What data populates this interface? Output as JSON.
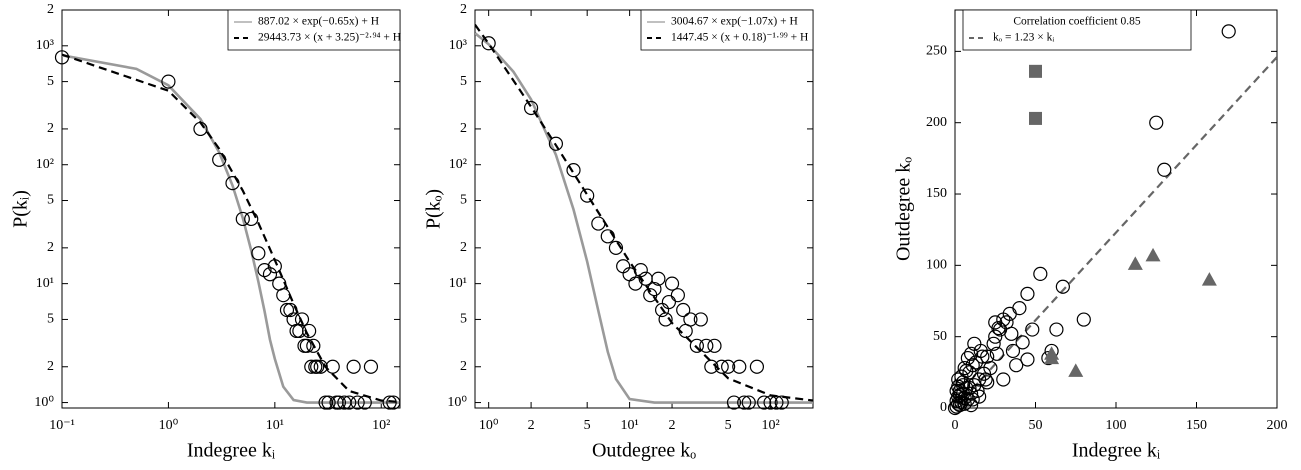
{
  "chart_data": [
    {
      "type": "scatter",
      "xlabel": "Indegree kᵢ",
      "ylabel": "P(kᵢ)",
      "xscale": "log",
      "yscale": "log",
      "xlim": [
        0.1,
        150
      ],
      "ylim": [
        0.9,
        2000
      ],
      "xticks": [
        {
          "value": 0.1,
          "label": "10⁻¹"
        },
        {
          "value": 1,
          "label": "10⁰"
        },
        {
          "value": 10,
          "label": "10¹"
        },
        {
          "value": 100,
          "label": "10²"
        }
      ],
      "yticks": [
        {
          "value": 1,
          "label": "10⁰"
        },
        2,
        5,
        {
          "value": 10,
          "label": "10¹"
        },
        {
          "value": 20,
          "label": "2"
        },
        {
          "value": 50,
          "label": "5"
        },
        {
          "value": 100,
          "label": "10²"
        },
        {
          "value": 200,
          "label": "2"
        },
        {
          "value": 500,
          "label": "5"
        },
        {
          "value": 1000,
          "label": "10³"
        },
        {
          "value": 2000,
          "label": "2"
        }
      ],
      "legend": "upper right",
      "series": [
        {
          "name": "887.02 × exp(−0.65x) + H",
          "color": "#9a9a9a",
          "marker": "none",
          "linestyle": "solid",
          "x": [
            0.1,
            0.5,
            1,
            2,
            3,
            4,
            5,
            6,
            7,
            8,
            9,
            10,
            12,
            15,
            20,
            150
          ],
          "values": [
            832,
            640,
            465,
            242,
            127,
            67,
            35.6,
            19,
            10.4,
            5.88,
            3.38,
            2.33,
            1.36,
            1.05,
            1,
            1
          ]
        },
        {
          "name": "29443.73 × (x + 3.25)⁻²·⁹⁴ + H",
          "color": "#000000",
          "marker": "none",
          "linestyle": "dashed",
          "x": [
            0.1,
            1,
            2,
            3,
            5,
            7,
            10,
            15,
            20,
            30,
            50,
            100,
            150
          ],
          "values": [
            843,
            419,
            226,
            136,
            60.5,
            32.4,
            15.8,
            6.77,
            3.83,
            1.99,
            1.25,
            1.04,
            1.01
          ]
        },
        {
          "color": "#000000",
          "marker": "circle",
          "x": [
            0.1,
            1,
            2,
            3,
            4,
            5,
            6,
            7,
            8,
            9,
            10,
            11,
            12,
            13,
            14,
            15,
            16,
            17,
            18,
            19,
            20,
            21,
            22,
            23,
            24,
            25,
            27,
            30,
            32,
            35,
            38,
            40,
            45,
            50,
            55,
            60,
            70,
            80,
            120,
            130
          ],
          "values": [
            800,
            500,
            200,
            110,
            70,
            35,
            35,
            18,
            13,
            12,
            14,
            10,
            8,
            6,
            6,
            5,
            4,
            4,
            5,
            3,
            3,
            4,
            2,
            3,
            2,
            2,
            2,
            1,
            1,
            2,
            1,
            1,
            1,
            1,
            2,
            1,
            1,
            2,
            1,
            1
          ]
        }
      ]
    },
    {
      "type": "scatter",
      "xlabel": "Outdegree kₒ",
      "ylabel": "P(kₒ)",
      "xscale": "log",
      "yscale": "log",
      "xlim": [
        0.8,
        200
      ],
      "ylim": [
        0.9,
        2000
      ],
      "xticks": [
        {
          "value": 1,
          "label": "10⁰"
        },
        2,
        5,
        {
          "value": 10,
          "label": "10¹"
        },
        {
          "value": 20,
          "label": "2"
        },
        {
          "value": 50,
          "label": "5"
        },
        {
          "value": 100,
          "label": "10²"
        }
      ],
      "yticks": [
        {
          "value": 1,
          "label": "10⁰"
        },
        2,
        5,
        {
          "value": 10,
          "label": "10¹"
        },
        {
          "value": 20,
          "label": "2"
        },
        {
          "value": 50,
          "label": "5"
        },
        {
          "value": 100,
          "label": "10²"
        },
        {
          "value": 200,
          "label": "2"
        },
        {
          "value": 500,
          "label": "5"
        },
        {
          "value": 1000,
          "label": "10³"
        },
        {
          "value": 2000,
          "label": "2"
        }
      ],
      "legend": "upper right",
      "series": [
        {
          "name": "3004.67 × exp(−1.07x) + H",
          "color": "#9a9a9a",
          "marker": "none",
          "linestyle": "solid",
          "x": [
            0.8,
            1,
            1.5,
            2,
            3,
            4,
            5,
            6,
            7,
            8,
            10,
            15,
            200
          ],
          "values": [
            1277,
            1030,
            605,
            354,
            121,
            42,
            15.3,
            5.9,
            2.67,
            1.58,
            1.07,
            1,
            1
          ]
        },
        {
          "name": "1447.45 × (x + 0.18)⁻¹·⁹⁹ + H",
          "color": "#000000",
          "marker": "none",
          "linestyle": "dashed",
          "x": [
            0.8,
            1,
            2,
            3,
            5,
            10,
            20,
            50,
            100,
            200
          ],
          "values": [
            1508,
            1042,
            307,
            146,
            55.9,
            15.3,
            4.66,
            1.6,
            1.15,
            1.04
          ]
        },
        {
          "color": "#000000",
          "marker": "circle",
          "x": [
            1,
            2,
            3,
            4,
            5,
            6,
            7,
            8,
            9,
            10,
            11,
            12,
            13,
            14,
            15,
            16,
            17,
            18,
            19,
            20,
            22,
            24,
            25,
            27,
            30,
            32,
            35,
            38,
            40,
            45,
            50,
            55,
            60,
            65,
            70,
            80,
            90,
            100,
            110,
            120
          ],
          "values": [
            1050,
            300,
            150,
            90,
            55,
            32,
            25,
            20,
            14,
            12,
            10,
            13,
            11,
            8,
            9,
            11,
            6,
            5,
            7,
            10,
            8,
            6,
            4,
            5,
            3,
            5,
            3,
            2,
            3,
            2,
            2,
            1,
            2,
            1,
            1,
            2,
            1,
            1,
            1,
            1
          ]
        }
      ]
    },
    {
      "type": "scatter",
      "xlabel": "Indegree kᵢ",
      "ylabel": "Outdegree kₒ",
      "xlim": [
        0,
        200
      ],
      "ylim": [
        0,
        279
      ],
      "xticks": [
        0,
        50,
        100,
        150,
        200
      ],
      "yticks": [
        0,
        50,
        100,
        150,
        200,
        250
      ],
      "legend": "upper left",
      "annotation": "Correlation coefficient 0.85",
      "series": [
        {
          "name": "kₒ = 1.23 × kᵢ",
          "color": "#666666",
          "marker": "none",
          "linestyle": "dashed",
          "x": [
            0,
            200
          ],
          "values": [
            0,
            246
          ]
        },
        {
          "color": "#000000",
          "marker": "circle",
          "x": [
            0,
            1,
            2,
            3,
            1,
            2,
            4,
            5,
            3,
            6,
            2,
            8,
            5,
            7,
            10,
            4,
            12,
            9,
            6,
            15,
            11,
            8,
            14,
            3,
            18,
            10,
            20,
            13,
            16,
            7,
            22,
            12,
            25,
            17,
            19,
            9,
            27,
            24,
            28,
            30,
            26,
            32,
            34,
            35,
            38,
            40,
            42,
            45,
            48,
            53,
            58,
            60,
            63,
            67,
            80,
            130,
            125,
            170,
            45,
            36,
            30,
            20,
            15,
            10,
            5,
            2,
            1,
            6,
            11,
            25
          ],
          "values": [
            0,
            1,
            3,
            2,
            5,
            8,
            4,
            10,
            12,
            7,
            15,
            6,
            18,
            14,
            10,
            22,
            16,
            25,
            28,
            20,
            30,
            35,
            12,
            9,
            24,
            38,
            18,
            32,
            40,
            26,
            28,
            45,
            50,
            36,
            20,
            14,
            56,
            45,
            55,
            62,
            38,
            60,
            66,
            52,
            30,
            70,
            46,
            80,
            55,
            94,
            35,
            40,
            55,
            85,
            62,
            167,
            200,
            264,
            34,
            40,
            20,
            36,
            8,
            2,
            16,
            20,
            12,
            3,
            6,
            60
          ]
        },
        {
          "color": "#666666",
          "marker": "square",
          "x": [
            50,
            50
          ],
          "values": [
            236,
            203
          ]
        },
        {
          "color": "#666666",
          "marker": "triangle",
          "x": [
            112,
            123,
            158,
            60,
            75,
            60
          ],
          "values": [
            101,
            107,
            90,
            38,
            26,
            35
          ]
        }
      ]
    }
  ]
}
